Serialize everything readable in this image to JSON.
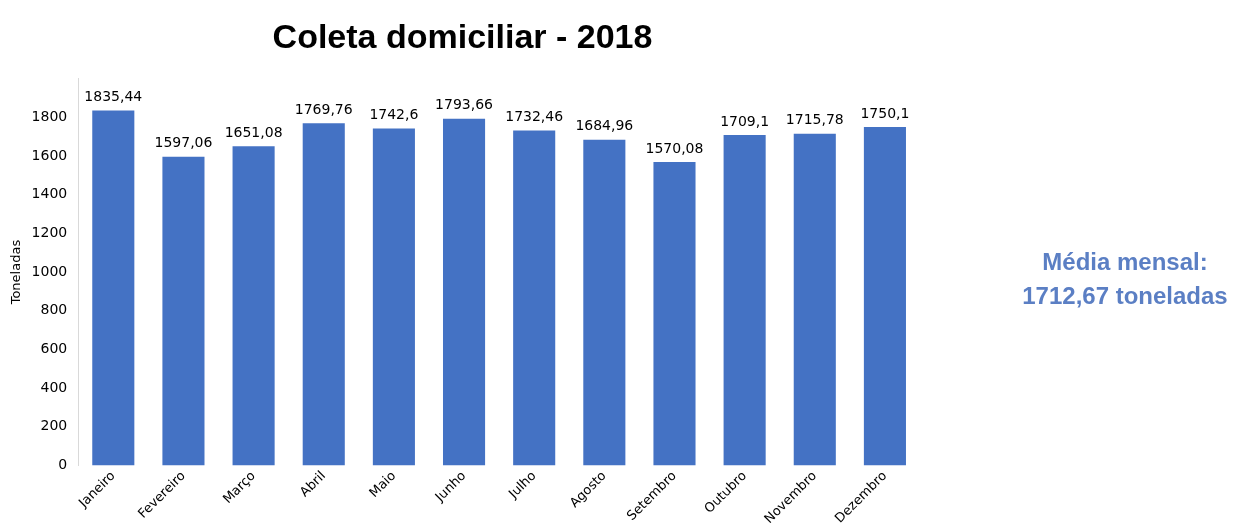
{
  "chart_data": {
    "type": "bar",
    "title": "Coleta domiciliar - 2018",
    "ylabel": "Toneladas",
    "categories": [
      "Janeiro",
      "Fevereiro",
      "Março",
      "Abril",
      "Maio",
      "Junho",
      "Julho",
      "Agosto",
      "Setembro",
      "Outubro",
      "Novembro",
      "Dezembro"
    ],
    "values": [
      1835.44,
      1597.06,
      1651.08,
      1769.76,
      1742.6,
      1793.66,
      1732.46,
      1684.96,
      1570.08,
      1709.1,
      1715.78,
      1750.1
    ],
    "value_labels": [
      "1835,44",
      "1597,06",
      "1651,08",
      "1769,76",
      "1742,6",
      "1793,66",
      "1732,46",
      "1684,96",
      "1570,08",
      "1709,1",
      "1715,78",
      "1750,1"
    ],
    "color": "#4472c4",
    "ylim": [
      0,
      2000
    ],
    "yticks": [
      0,
      200,
      400,
      600,
      800,
      1000,
      1200,
      1400,
      1600,
      1800
    ],
    "grid": false,
    "legend": false,
    "annotations": [
      "Média mensal: 1712,67 toneladas"
    ]
  }
}
